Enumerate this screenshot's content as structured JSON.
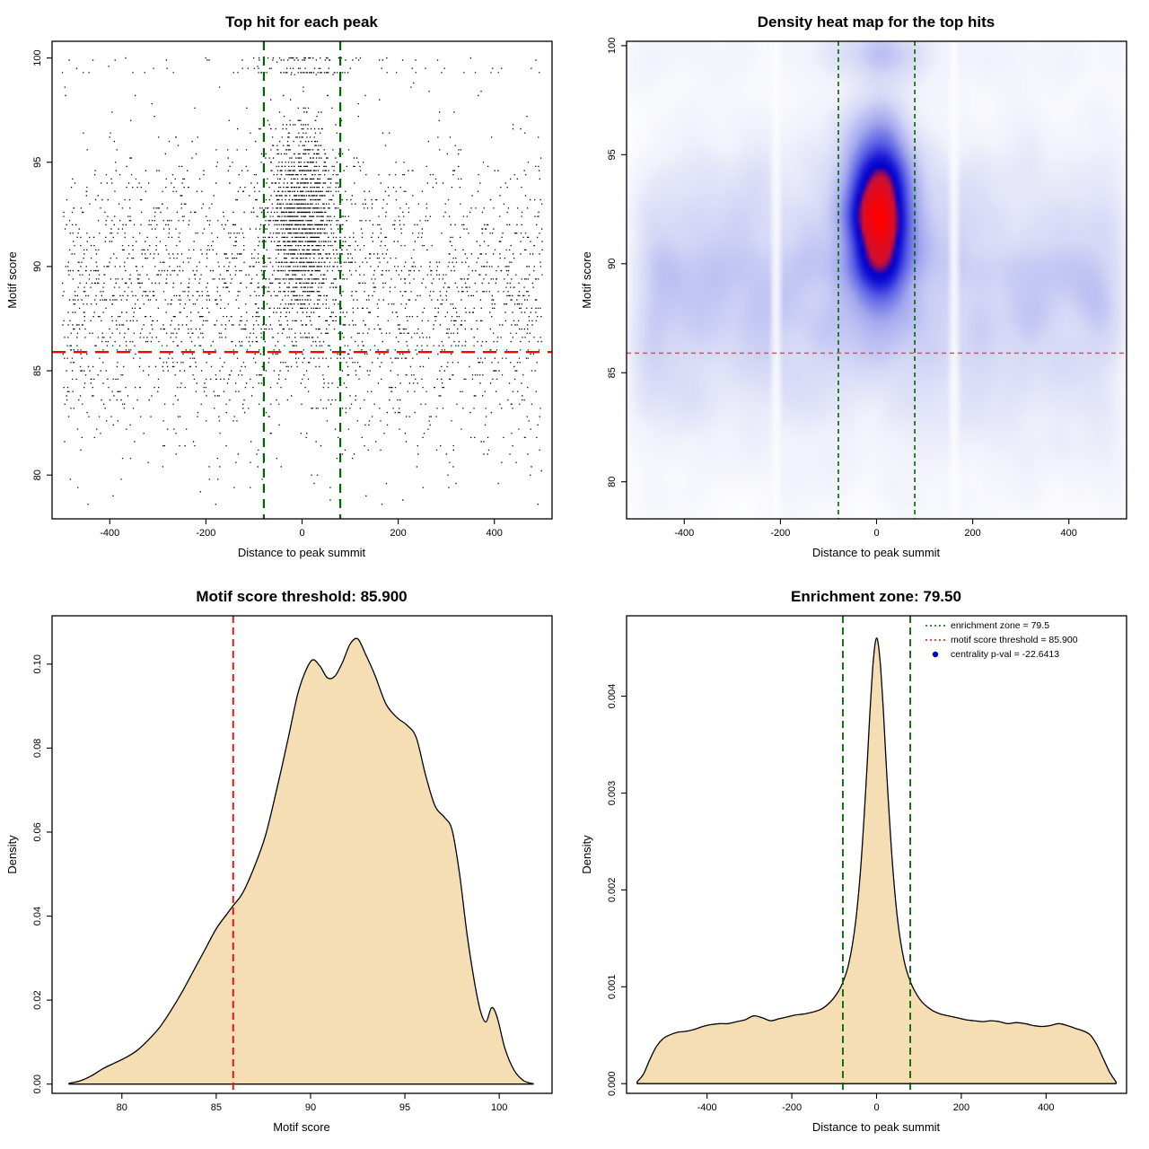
{
  "chart_data": [
    {
      "type": "scatter",
      "title": "Top hit for each peak",
      "xlabel": "Distance to peak summit",
      "ylabel": "Motif score",
      "xlim": [
        -520,
        520
      ],
      "ylim": [
        77.9,
        100.8
      ],
      "xticks": [
        -400,
        -200,
        0,
        200,
        400
      ],
      "xtick_labels": [
        "-400",
        "-200",
        "0",
        "200",
        "400"
      ],
      "yticks": [
        80,
        85,
        90,
        95,
        100
      ],
      "ytick_labels": [
        "80",
        "85",
        "90",
        "95",
        "100"
      ],
      "point_color": "#000000",
      "motif_score_threshold": 85.9,
      "threshold_color": "#ff0000",
      "enrichment_zone": [
        -79.5,
        79.5
      ],
      "zone_color": "#006400",
      "generator": {
        "seed": 20240613,
        "n_background": 2900,
        "bg_score_mean": 88.6,
        "bg_score_sd": 3.6,
        "n_central": 1500,
        "central_x_sd": 36,
        "central_score_mean": 92.2,
        "central_score_sd": 2.4,
        "n_top": 150,
        "top_scores": [
          99.3,
          99.3,
          99.5,
          99.9,
          100.0
        ],
        "top_x_sd": 58,
        "score_quantum": 0.2,
        "score_min": 78.4,
        "score_max": 100.1,
        "x_range": [
          -500,
          500
        ]
      }
    },
    {
      "type": "heatmap",
      "title": "Density heat map for the top hits",
      "xlabel": "Distance to peak summit",
      "ylabel": "Motif score",
      "xlim": [
        -520,
        520
      ],
      "ylim": [
        78.3,
        100.2
      ],
      "xticks": [
        -400,
        -200,
        0,
        200,
        400
      ],
      "xtick_labels": [
        "-400",
        "-200",
        "0",
        "200",
        "400"
      ],
      "yticks": [
        80,
        85,
        90,
        95,
        100
      ],
      "ytick_labels": [
        "80",
        "85",
        "90",
        "95",
        "100"
      ],
      "motif_score_threshold": 85.9,
      "threshold_color": "#ff4444",
      "enrichment_zone": [
        -79.5,
        79.5
      ],
      "zone_color": "#006400",
      "gamma": 0.45,
      "white_streaks": [
        -215,
        158
      ],
      "colormap": [
        [
          0,
          "#ffffff"
        ],
        [
          0.18,
          "#f0f1fb"
        ],
        [
          0.35,
          "#d4d7f6"
        ],
        [
          0.52,
          "#a3a8ee"
        ],
        [
          0.66,
          "#5a5fe4"
        ],
        [
          0.76,
          "#1717d6"
        ],
        [
          0.82,
          "#0000cd"
        ],
        [
          0.88,
          "#cc1133"
        ],
        [
          1,
          "#ff0000"
        ]
      ]
    },
    {
      "type": "area",
      "title": "Motif score threshold: 85.900",
      "xlabel": "Motif score",
      "ylabel": "Density",
      "xlim": [
        76.3,
        102.8
      ],
      "ylim": [
        -0.0022,
        0.1115
      ],
      "xticks": [
        80,
        85,
        90,
        95,
        100
      ],
      "xtick_labels": [
        "80",
        "85",
        "90",
        "95",
        "100"
      ],
      "yticks": [
        0,
        0.02,
        0.04,
        0.06,
        0.08,
        0.1
      ],
      "ytick_labels": [
        "0.00",
        "0.02",
        "0.04",
        "0.06",
        "0.08",
        "0.10"
      ],
      "fill_color": "#f5deb3",
      "line_color": "#000000",
      "threshold": 85.9,
      "threshold_color": "#ff0000",
      "curve": {
        "x": [
          77.2,
          77.8,
          78.4,
          79.0,
          79.6,
          80.2,
          80.8,
          81.4,
          82.0,
          82.6,
          83.2,
          83.8,
          84.4,
          85.0,
          85.6,
          85.9,
          86.4,
          87.0,
          87.6,
          88.2,
          88.8,
          89.3,
          89.7,
          90.1,
          90.5,
          90.9,
          91.3,
          91.7,
          92.1,
          92.5,
          92.9,
          93.4,
          94.0,
          94.6,
          95.1,
          95.6,
          96.1,
          96.6,
          97.1,
          97.5,
          97.9,
          98.3,
          98.7,
          99.0,
          99.3,
          99.6,
          99.9,
          100.3,
          100.8,
          101.3,
          101.8
        ],
        "y": [
          0.0002,
          0.0008,
          0.002,
          0.0037,
          0.005,
          0.0063,
          0.008,
          0.0105,
          0.0135,
          0.0175,
          0.022,
          0.027,
          0.032,
          0.037,
          0.0407,
          0.0425,
          0.0455,
          0.0515,
          0.059,
          0.07,
          0.082,
          0.0925,
          0.098,
          0.101,
          0.0995,
          0.0967,
          0.0972,
          0.1005,
          0.1048,
          0.106,
          0.1025,
          0.0975,
          0.0905,
          0.0872,
          0.0855,
          0.0825,
          0.0735,
          0.0662,
          0.0635,
          0.0605,
          0.05,
          0.0355,
          0.024,
          0.0175,
          0.0148,
          0.0182,
          0.0158,
          0.0085,
          0.0032,
          0.0008,
          0.0001
        ]
      }
    },
    {
      "type": "area",
      "title": "Enrichment zone: 79.50",
      "xlabel": "Distance to peak summit",
      "ylabel": "Density",
      "xlim": [
        -590,
        590
      ],
      "ylim": [
        -0.0001,
        0.00483
      ],
      "xticks": [
        -400,
        -200,
        0,
        200,
        400
      ],
      "xtick_labels": [
        "-400",
        "-200",
        "0",
        "200",
        "400"
      ],
      "yticks": [
        0,
        0.001,
        0.002,
        0.003,
        0.004
      ],
      "ytick_labels": [
        "0.000",
        "0.001",
        "0.002",
        "0.003",
        "0.004"
      ],
      "fill_color": "#f5deb3",
      "line_color": "#000000",
      "enrichment_zone": [
        -79.5,
        79.5
      ],
      "zone_color": "#006400",
      "legend": [
        {
          "label": "enrichment zone = 79.5",
          "color": "#006400",
          "style": "dotted-line"
        },
        {
          "label": "motif score threshold = 85.900",
          "color": "#ff0000",
          "style": "dotted-line"
        },
        {
          "label": "centrality p-val = -22.6413",
          "color": "#0000cd",
          "style": "point"
        }
      ],
      "curve": {
        "x": [
          -565,
          -550,
          -535,
          -520,
          -505,
          -490,
          -470,
          -450,
          -430,
          -410,
          -390,
          -370,
          -350,
          -330,
          -310,
          -290,
          -270,
          -250,
          -230,
          -210,
          -190,
          -170,
          -150,
          -130,
          -110,
          -95,
          -80,
          -65,
          -50,
          -38,
          -26,
          -16,
          -8,
          0,
          8,
          16,
          26,
          38,
          50,
          65,
          80,
          95,
          110,
          130,
          150,
          170,
          190,
          210,
          230,
          250,
          270,
          290,
          310,
          330,
          350,
          370,
          390,
          410,
          430,
          450,
          470,
          490,
          505,
          520,
          535,
          550,
          565
        ],
        "y": [
          2e-05,
          0.0001,
          0.00025,
          0.00038,
          0.00046,
          0.0005,
          0.00053,
          0.00054,
          0.00056,
          0.00059,
          0.00061,
          0.00062,
          0.00062,
          0.00064,
          0.00066,
          0.0007,
          0.00068,
          0.00065,
          0.00067,
          0.00069,
          0.00071,
          0.00072,
          0.00074,
          0.00077,
          0.00084,
          0.00092,
          0.00104,
          0.00125,
          0.00165,
          0.0022,
          0.003,
          0.0038,
          0.00435,
          0.0046,
          0.00438,
          0.00385,
          0.00305,
          0.00225,
          0.00168,
          0.00127,
          0.00105,
          0.00092,
          0.00083,
          0.00076,
          0.00072,
          0.0007,
          0.00068,
          0.00066,
          0.00065,
          0.00064,
          0.00065,
          0.00064,
          0.00062,
          0.00063,
          0.00062,
          0.0006,
          0.00059,
          0.0006,
          0.00062,
          0.0006,
          0.00057,
          0.00054,
          0.0005,
          0.0004,
          0.00026,
          0.00012,
          2e-05
        ]
      }
    }
  ]
}
